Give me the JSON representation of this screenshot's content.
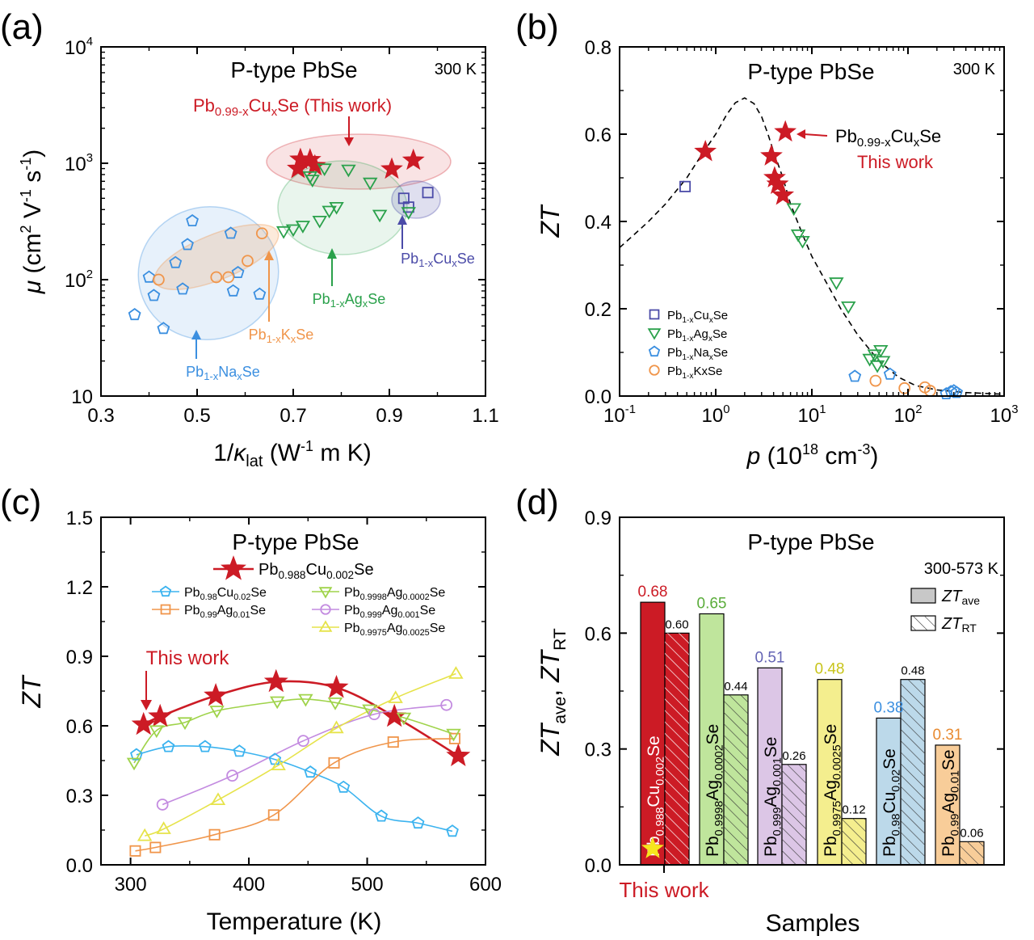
{
  "figure": {
    "panel_labels": [
      "(a)",
      "(b)",
      "(c)",
      "(d)"
    ],
    "colors": {
      "cu_this_work": "#cc1b25",
      "cu": "#4b4ba8",
      "ag": "#2aa14b",
      "na": "#3b8fe0",
      "k": "#f0954a",
      "c_cu002": "#3bb3ef",
      "c_ag001": "#f0954a",
      "c_ag00002": "#9fd34a",
      "c_ag0001": "#c38be0",
      "c_ag00025": "#e6e34a"
    }
  },
  "chart_data": [
    {
      "panel": "(a)",
      "type": "scatter",
      "title": "P-type PbSe",
      "temperature": "300 K",
      "xlabel": "1/κlat (W⁻¹ m K)",
      "ylabel": "μ (cm² V⁻¹ s⁻¹)",
      "xlim": [
        0.3,
        1.1
      ],
      "ylim": [
        10,
        10000
      ],
      "y_scale": "log",
      "x_ticks": [
        "0.3",
        "0.5",
        "0.7",
        "0.9",
        "1.1"
      ],
      "y_ticks": [
        "10",
        "10²",
        "10³",
        "10⁴"
      ],
      "annotations": [
        "Pb0.99-xCuxSe (This work)",
        "Pb1-xCuxSe",
        "Pb1-xAgxSe",
        "Pb1-xKxSe",
        "Pb1-xNaxSe"
      ],
      "series": [
        {
          "name": "Pb0.99-xCuxSe (This work)",
          "marker": "star",
          "color": "#cc1b25",
          "points": [
            [
              0.715,
              1080
            ],
            [
              0.735,
              1070
            ],
            [
              0.71,
              900
            ],
            [
              0.745,
              950
            ],
            [
              0.905,
              890
            ],
            [
              0.95,
              1060
            ]
          ]
        },
        {
          "name": "Pb1-xCuxSe",
          "marker": "square",
          "color": "#4b4ba8",
          "points": [
            [
              0.93,
              500
            ],
            [
              0.94,
              420
            ],
            [
              0.98,
              560
            ]
          ]
        },
        {
          "name": "Pb1-xAgxSe",
          "marker": "triangle-down",
          "color": "#2aa14b",
          "points": [
            [
              0.735,
              770
            ],
            [
              0.74,
              720
            ],
            [
              0.765,
              900
            ],
            [
              0.815,
              880
            ],
            [
              0.86,
              680
            ],
            [
              0.68,
              260
            ],
            [
              0.7,
              270
            ],
            [
              0.72,
              290
            ],
            [
              0.755,
              320
            ],
            [
              0.775,
              390
            ],
            [
              0.79,
              420
            ],
            [
              0.88,
              360
            ],
            [
              0.94,
              380
            ]
          ]
        },
        {
          "name": "Pb1-xNaxSe",
          "marker": "pentagon",
          "color": "#3b8fe0",
          "points": [
            [
              0.37,
              50
            ],
            [
              0.4,
              105
            ],
            [
              0.41,
              73
            ],
            [
              0.43,
              38
            ],
            [
              0.455,
              140
            ],
            [
              0.47,
              83
            ],
            [
              0.48,
              200
            ],
            [
              0.49,
              320
            ],
            [
              0.57,
              250
            ],
            [
              0.575,
              80
            ],
            [
              0.585,
              115
            ],
            [
              0.63,
              75
            ]
          ]
        },
        {
          "name": "Pb1-xKxSe",
          "marker": "circle",
          "color": "#f0954a",
          "points": [
            [
              0.42,
              100
            ],
            [
              0.54,
              105
            ],
            [
              0.565,
              105
            ],
            [
              0.605,
              145
            ],
            [
              0.635,
              250
            ]
          ]
        }
      ],
      "ellipses": [
        {
          "name": "Pb0.99-xCuxSe (This work)",
          "color": "#cc1b25"
        },
        {
          "name": "Pb1-xCuxSe",
          "color": "#4b4ba8"
        },
        {
          "name": "Pb1-xAgxSe",
          "color": "#2aa14b"
        },
        {
          "name": "Pb1-xNaxSe",
          "color": "#3b8fe0"
        },
        {
          "name": "Pb1-xKxSe",
          "color": "#f0954a"
        }
      ]
    },
    {
      "panel": "(b)",
      "type": "scatter",
      "title": "P-type PbSe",
      "temperature": "300 K",
      "xlabel": "p (10¹⁸ cm⁻³)",
      "ylabel": "ZT",
      "x_scale": "log",
      "xlim": [
        0.1,
        1000
      ],
      "ylim": [
        0,
        0.8
      ],
      "x_ticks": [
        "10⁻¹",
        "10⁰",
        "10¹",
        "10²",
        "10³"
      ],
      "y_ticks": [
        "0.0",
        "0.2",
        "0.4",
        "0.6",
        "0.8"
      ],
      "annotation_label": "Pb0.99-xCuxSe",
      "annotation_sub": "This work",
      "legend": [
        "Pb1-xCuxSe",
        "Pb1-xAgxSe",
        "Pb1-xNaxSe",
        "Pb1-xKxSe"
      ],
      "legend_position": "bottom-left",
      "model_curve": [
        [
          0.1,
          0.34
        ],
        [
          0.15,
          0.375
        ],
        [
          0.2,
          0.4
        ],
        [
          0.3,
          0.44
        ],
        [
          0.5,
          0.5
        ],
        [
          0.7,
          0.55
        ],
        [
          1.0,
          0.6
        ],
        [
          1.3,
          0.645
        ],
        [
          1.6,
          0.672
        ],
        [
          2.0,
          0.683
        ],
        [
          2.5,
          0.67
        ],
        [
          3.0,
          0.64
        ],
        [
          3.5,
          0.6
        ],
        [
          4.0,
          0.56
        ],
        [
          5.0,
          0.5
        ],
        [
          6.0,
          0.44
        ],
        [
          8.0,
          0.37
        ],
        [
          10,
          0.32
        ],
        [
          15,
          0.25
        ],
        [
          20,
          0.2
        ],
        [
          30,
          0.14
        ],
        [
          50,
          0.08
        ],
        [
          80,
          0.043
        ],
        [
          120,
          0.024
        ],
        [
          200,
          0.014
        ],
        [
          400,
          0.008
        ],
        [
          1000,
          0.004
        ]
      ],
      "series": [
        {
          "name": "Pb0.99-xCuxSe",
          "marker": "star",
          "color": "#cc1b25",
          "points": [
            [
              0.78,
              0.56
            ],
            [
              3.8,
              0.55
            ],
            [
              4.1,
              0.5
            ],
            [
              4.4,
              0.485
            ],
            [
              5.0,
              0.46
            ],
            [
              5.3,
              0.605
            ]
          ]
        },
        {
          "name": "Pb1-xCuxSe",
          "marker": "square",
          "color": "#4b4ba8",
          "points": [
            [
              0.48,
              0.48
            ]
          ]
        },
        {
          "name": "Pb1-xAgxSe",
          "marker": "triangle-down",
          "color": "#2aa14b",
          "points": [
            [
              6.5,
              0.43
            ],
            [
              7.2,
              0.37
            ],
            [
              8.0,
              0.355
            ],
            [
              18,
              0.26
            ],
            [
              24,
              0.205
            ],
            [
              40,
              0.085
            ],
            [
              45,
              0.095
            ],
            [
              48,
              0.07
            ],
            [
              52,
              0.105
            ],
            [
              55,
              0.08
            ]
          ]
        },
        {
          "name": "Pb1-xNaxSe",
          "marker": "pentagon",
          "color": "#3b8fe0",
          "points": [
            [
              28,
              0.045
            ],
            [
              65,
              0.05
            ],
            [
              250,
              0.005
            ],
            [
              280,
              0.01
            ],
            [
              300,
              0.012
            ],
            [
              320,
              0.008
            ]
          ]
        },
        {
          "name": "Pb1-xKxSe",
          "marker": "circle",
          "color": "#f0954a",
          "points": [
            [
              46,
              0.035
            ],
            [
              92,
              0.018
            ],
            [
              150,
              0.02
            ],
            [
              170,
              0.012
            ]
          ]
        }
      ]
    },
    {
      "panel": "(c)",
      "type": "line",
      "title": "P-type PbSe",
      "xlabel": "Temperature (K)",
      "ylabel": "ZT",
      "xlim": [
        275,
        600
      ],
      "ylim": [
        0,
        1.5
      ],
      "x_ticks": [
        "300",
        "400",
        "500",
        "600"
      ],
      "y_ticks": [
        "0.0",
        "0.3",
        "0.6",
        "0.9",
        "1.2",
        "1.5"
      ],
      "annotation": "This work",
      "legend": [
        "Pb0.988Cu0.002Se",
        "Pb0.98Cu0.02Se",
        "Pb0.99Ag0.01Se",
        "Pb0.9998Ag0.0002Se",
        "Pb0.999Ag0.001Se",
        "Pb0.9975Ag0.0025Se"
      ],
      "legend_position": "top",
      "series": [
        {
          "name": "Pb0.988Cu0.002Se",
          "marker": "star",
          "color": "#cc1b25",
          "points": [
            [
              311,
              0.605
            ],
            [
              325,
              0.64
            ],
            [
              372,
              0.73
            ],
            [
              423,
              0.79
            ],
            [
              474,
              0.765
            ],
            [
              523,
              0.64
            ],
            [
              577,
              0.47
            ]
          ]
        },
        {
          "name": "Pb0.98Cu0.02Se",
          "marker": "pentagon",
          "color": "#3bb3ef",
          "points": [
            [
              305,
              0.475
            ],
            [
              332,
              0.51
            ],
            [
              363,
              0.51
            ],
            [
              392,
              0.49
            ],
            [
              422,
              0.455
            ],
            [
              452,
              0.4
            ],
            [
              480,
              0.335
            ],
            [
              512,
              0.21
            ],
            [
              543,
              0.18
            ],
            [
              572,
              0.145
            ]
          ]
        },
        {
          "name": "Pb0.99Ag0.01Se",
          "marker": "square",
          "color": "#f0954a",
          "points": [
            [
              304,
              0.06
            ],
            [
              321,
              0.075
            ],
            [
              371,
              0.13
            ],
            [
              421,
              0.215
            ],
            [
              472,
              0.44
            ],
            [
              522,
              0.53
            ],
            [
              574,
              0.545
            ]
          ]
        },
        {
          "name": "Pb0.9998Ag0.0002Se",
          "marker": "triangle-down",
          "color": "#9fd34a",
          "points": [
            [
              303,
              0.44
            ],
            [
              322,
              0.58
            ],
            [
              346,
              0.615
            ],
            [
              373,
              0.665
            ],
            [
              424,
              0.705
            ],
            [
              448,
              0.715
            ],
            [
              473,
              0.7
            ],
            [
              502,
              0.67
            ],
            [
              531,
              0.635
            ],
            [
              573,
              0.565
            ]
          ]
        },
        {
          "name": "Pb0.999Ag0.001Se",
          "marker": "circle",
          "color": "#c38be0",
          "points": [
            [
              327,
              0.26
            ],
            [
              386,
              0.385
            ],
            [
              446,
              0.535
            ],
            [
              506,
              0.65
            ],
            [
              567,
              0.69
            ]
          ]
        },
        {
          "name": "Pb0.9975Ag0.0025Se",
          "marker": "triangle-up",
          "color": "#e6e34a",
          "points": [
            [
              312,
              0.125
            ],
            [
              328,
              0.155
            ],
            [
              374,
              0.28
            ],
            [
              425,
              0.43
            ],
            [
              474,
              0.59
            ],
            [
              524,
              0.72
            ],
            [
              575,
              0.825
            ]
          ]
        }
      ]
    },
    {
      "panel": "(d)",
      "type": "bar",
      "title": "P-type PbSe",
      "temperature": "300-573 K",
      "xlabel": "Samples",
      "ylabel": "ZTave, ZTRT",
      "ylim": [
        0,
        0.9
      ],
      "y_ticks": [
        "0.0",
        "0.3",
        "0.6",
        "0.9"
      ],
      "legend": [
        "ZTave",
        "ZTRT"
      ],
      "legend_position": "top-right",
      "annotation": "This work",
      "categories": [
        "Pb0.988Cu0.002Se",
        "Pb0.9998Ag0.0002Se",
        "Pb0.999Ag0.001Se",
        "Pb0.9975Ag0.0025Se",
        "Pb0.98Cu0.02Se",
        "Pb0.99Ag0.01Se"
      ],
      "series": [
        {
          "name": "ZTave",
          "values": [
            0.68,
            0.65,
            0.51,
            0.48,
            0.38,
            0.31
          ],
          "labels": [
            "0.68",
            "0.65",
            "0.51",
            "0.48",
            "0.38",
            "0.31"
          ]
        },
        {
          "name": "ZTRT",
          "values": [
            0.6,
            0.44,
            0.26,
            0.12,
            0.48,
            0.06
          ],
          "labels": [
            "0.60",
            "0.44",
            "0.26",
            "0.12",
            "0.48",
            "0.06"
          ]
        }
      ],
      "bar_colors": [
        "#cc1b25",
        "#bfe59c",
        "#dcc6e6",
        "#f4ee8e",
        "#bcd9ea",
        "#f8cd99"
      ],
      "value_label_colors": [
        "#cc1b25",
        "#5aac3a",
        "#6464b4",
        "#c8c41a",
        "#3b8fe0",
        "#e88a30"
      ]
    }
  ]
}
